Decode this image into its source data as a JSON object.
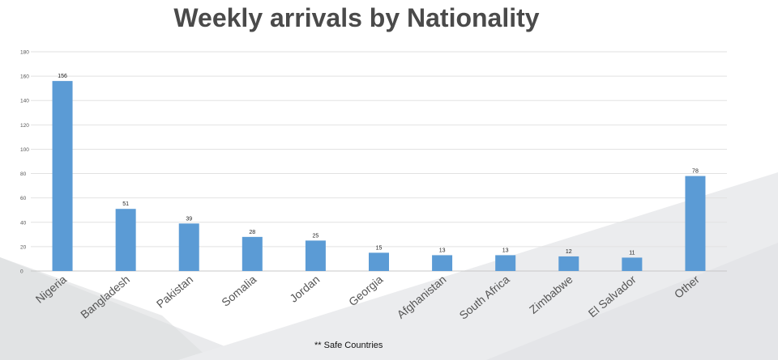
{
  "chart_data": {
    "type": "bar",
    "title": "Weekly arrivals by Nationality",
    "xlabel": "",
    "ylabel": "",
    "categories": [
      "Nigeria",
      "Bangladesh",
      "Pakistan",
      "Somalia",
      "Jordan",
      "Georgia",
      "Afghanistan",
      "South Africa",
      "Zimbabwe",
      "El Salvador",
      "Other"
    ],
    "values": [
      156,
      51,
      39,
      28,
      25,
      15,
      13,
      13,
      12,
      11,
      78
    ],
    "yticks": [
      0,
      20,
      40,
      60,
      80,
      100,
      120,
      140,
      160,
      180
    ],
    "ylim": [
      0,
      180
    ],
    "grid": true,
    "legend": "none",
    "bar_color": "#5b9bd5"
  },
  "footnote": "** Safe Countries"
}
